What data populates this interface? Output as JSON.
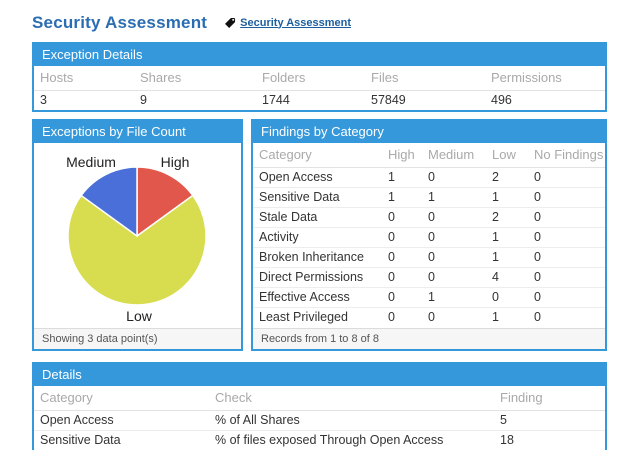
{
  "header": {
    "title": "Security Assessment",
    "breadcrumb": "Security Assessment"
  },
  "colors": {
    "accent_blue": "#3498db",
    "title_blue": "#2a6db3",
    "link_blue": "#1b5e9e"
  },
  "exception_details": {
    "title": "Exception Details",
    "columns": [
      "Hosts",
      "Shares",
      "Folders",
      "Files",
      "Permissions"
    ],
    "values": [
      "3",
      "9",
      "1744",
      "57849",
      "496"
    ]
  },
  "chart_data": {
    "type": "pie",
    "title": "Exceptions by File Count",
    "footer": "Showing 3 data point(s)",
    "start_angle_deg": 0,
    "direction": "clockwise",
    "legend_position": "labels-outside",
    "slices": [
      {
        "label": "High",
        "value": 15,
        "color": "#e2574c"
      },
      {
        "label": "Low",
        "value": 70,
        "color": "#d8dd4f"
      },
      {
        "label": "Medium",
        "value": 15,
        "color": "#4a6fd9"
      }
    ]
  },
  "findings": {
    "title": "Findings by Category",
    "columns": [
      "Category",
      "High",
      "Medium",
      "Low",
      "No Findings"
    ],
    "rows": [
      [
        "Open Access",
        "1",
        "0",
        "2",
        "0"
      ],
      [
        "Sensitive Data",
        "1",
        "1",
        "1",
        "0"
      ],
      [
        "Stale Data",
        "0",
        "0",
        "2",
        "0"
      ],
      [
        "Activity",
        "0",
        "0",
        "1",
        "0"
      ],
      [
        "Broken Inheritance",
        "0",
        "0",
        "1",
        "0"
      ],
      [
        "Direct Permissions",
        "0",
        "0",
        "4",
        "0"
      ],
      [
        "Effective Access",
        "0",
        "1",
        "0",
        "0"
      ],
      [
        "Least Privileged",
        "0",
        "0",
        "1",
        "0"
      ]
    ],
    "footer": "Records from 1 to 8 of 8"
  },
  "details": {
    "title": "Details",
    "columns": [
      "Category",
      "Check",
      "Finding"
    ],
    "rows": [
      [
        "Open Access",
        "% of All Shares",
        "5"
      ],
      [
        "Sensitive Data",
        "% of files exposed Through Open Access",
        "18"
      ]
    ]
  }
}
